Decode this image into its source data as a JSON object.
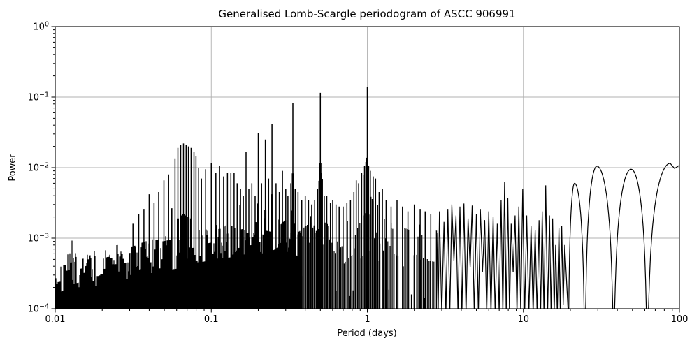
{
  "figure": {
    "title": "Generalised Lomb-Scargle periodogram of ASCC 906991",
    "xlabel": "Period (days)",
    "ylabel": "Power"
  },
  "chart_data": {
    "type": "line",
    "title": "Generalised Lomb-Scargle periodogram of ASCC 906991",
    "xlabel": "Period (days)",
    "ylabel": "Power",
    "xscale": "log",
    "yscale": "log",
    "xlim": [
      0.01,
      100
    ],
    "ylim": [
      0.0001,
      1
    ],
    "grid": true,
    "legend": null,
    "x_ticks": [
      0.01,
      0.1,
      1,
      10,
      100
    ],
    "x_tick_labels": [
      "0.01",
      "0.1",
      "1",
      "10",
      "100"
    ],
    "y_ticks": [
      1,
      0.1,
      0.01,
      0.001,
      0.0001
    ],
    "y_tick_labels": [
      [
        "10",
        "0"
      ],
      [
        "10",
        "−1"
      ],
      [
        "10",
        "−2"
      ],
      [
        "10",
        "−3"
      ],
      [
        "10",
        "−4"
      ]
    ],
    "colors": {
      "line": "#000000",
      "grid": "#b0b0b0",
      "bg": "#ffffff",
      "text": "#000000"
    },
    "seed": 7,
    "noise_region": {
      "min_period": 0.01,
      "max_period": 2.8
    },
    "noise_baseline": [
      [
        -2.0,
        0.00036
      ],
      [
        -1.75,
        0.00046
      ],
      [
        -1.55,
        0.00052
      ],
      [
        -1.4,
        0.00065
      ],
      [
        -1.25,
        0.00075
      ],
      [
        -1.1,
        0.00085
      ],
      [
        -1.0,
        0.00095
      ],
      [
        -0.85,
        0.00105
      ],
      [
        -0.72,
        0.0012
      ],
      [
        -0.6,
        0.00105
      ],
      [
        -0.52,
        0.0014
      ],
      [
        -0.44,
        0.0011
      ],
      [
        -0.35,
        0.0016
      ],
      [
        -0.3,
        0.0026
      ],
      [
        -0.26,
        0.0015
      ],
      [
        -0.18,
        0.0008
      ],
      [
        -0.1,
        0.0012
      ],
      [
        -0.04,
        0.003
      ],
      [
        0.0,
        0.0045
      ],
      [
        0.04,
        0.003
      ],
      [
        0.1,
        0.0015
      ],
      [
        0.18,
        0.0011
      ],
      [
        0.28,
        0.0009
      ],
      [
        0.36,
        0.00095
      ],
      [
        0.44,
        0.0009
      ]
    ],
    "main_peaks": [
      [
        0.0315,
        0.0016
      ],
      [
        0.0343,
        0.0022
      ],
      [
        0.037,
        0.0026
      ],
      [
        0.04,
        0.0042
      ],
      [
        0.043,
        0.0032
      ],
      [
        0.046,
        0.0045
      ],
      [
        0.0497,
        0.0066
      ],
      [
        0.0533,
        0.008
      ],
      [
        0.0586,
        0.0135
      ],
      [
        0.0611,
        0.019
      ],
      [
        0.0637,
        0.021
      ],
      [
        0.0664,
        0.022
      ],
      [
        0.069,
        0.021
      ],
      [
        0.0714,
        0.02
      ],
      [
        0.0743,
        0.019
      ],
      [
        0.0775,
        0.0165
      ],
      [
        0.0798,
        0.0145
      ],
      [
        0.083,
        0.01
      ],
      [
        0.0865,
        0.007
      ],
      [
        0.092,
        0.0095
      ],
      [
        0.1,
        0.0115
      ],
      [
        0.107,
        0.0085
      ],
      [
        0.113,
        0.0105
      ],
      [
        0.12,
        0.0075
      ],
      [
        0.127,
        0.0085
      ],
      [
        0.1335,
        0.0085
      ],
      [
        0.14,
        0.0085
      ],
      [
        0.1465,
        0.006
      ],
      [
        0.154,
        0.005
      ],
      [
        0.1605,
        0.004
      ],
      [
        0.167,
        0.0165
      ],
      [
        0.174,
        0.005
      ],
      [
        0.182,
        0.006
      ],
      [
        0.191,
        0.004
      ],
      [
        0.2,
        0.031
      ],
      [
        0.21,
        0.006
      ],
      [
        0.222,
        0.025
      ],
      [
        0.233,
        0.007
      ],
      [
        0.245,
        0.042
      ],
      [
        0.26,
        0.006
      ],
      [
        0.273,
        0.0045
      ],
      [
        0.286,
        0.009
      ],
      [
        0.3,
        0.005
      ],
      [
        0.31,
        0.004
      ],
      [
        0.3235,
        0.006
      ],
      [
        0.3333,
        0.083
      ],
      [
        0.345,
        0.005
      ],
      [
        0.36,
        0.0045
      ],
      [
        0.38,
        0.0035
      ],
      [
        0.4,
        0.004
      ],
      [
        0.42,
        0.0035
      ],
      [
        0.44,
        0.003
      ],
      [
        0.46,
        0.0035
      ],
      [
        0.48,
        0.005
      ],
      [
        0.49,
        0.0065
      ],
      [
        0.5,
        0.115
      ],
      [
        0.506,
        0.0085
      ],
      [
        0.515,
        0.0068
      ],
      [
        0.53,
        0.004
      ],
      [
        0.55,
        0.004
      ],
      [
        0.58,
        0.0032
      ],
      [
        0.6,
        0.0035
      ],
      [
        0.63,
        0.003
      ],
      [
        0.66,
        0.0028
      ],
      [
        0.7,
        0.0028
      ],
      [
        0.74,
        0.0032
      ],
      [
        0.78,
        0.0035
      ],
      [
        0.82,
        0.0045
      ],
      [
        0.85,
        0.0066
      ],
      [
        0.88,
        0.006
      ],
      [
        0.92,
        0.0085
      ],
      [
        0.96,
        0.0105
      ],
      [
        0.98,
        0.012
      ],
      [
        1.0,
        0.138
      ],
      [
        1.02,
        0.0105
      ],
      [
        1.045,
        0.009
      ],
      [
        1.09,
        0.0075
      ],
      [
        1.13,
        0.007
      ],
      [
        1.19,
        0.0045
      ],
      [
        1.25,
        0.005
      ],
      [
        1.32,
        0.0035
      ],
      [
        1.42,
        0.0028
      ],
      [
        1.55,
        0.0035
      ],
      [
        1.68,
        0.0028
      ],
      [
        1.82,
        0.0024
      ],
      [
        2.0,
        0.003
      ],
      [
        2.18,
        0.0026
      ],
      [
        2.35,
        0.0024
      ],
      [
        2.55,
        0.0022
      ]
    ],
    "oscillation_peaks": [
      [
        2.9,
        0.0024
      ],
      [
        3.1,
        0.0017
      ],
      [
        3.28,
        0.0026
      ],
      [
        3.48,
        0.003
      ],
      [
        3.7,
        0.0021
      ],
      [
        3.92,
        0.0028
      ],
      [
        4.16,
        0.0031
      ],
      [
        4.42,
        0.0019
      ],
      [
        4.7,
        0.0029
      ],
      [
        5.0,
        0.0022
      ],
      [
        5.3,
        0.0026
      ],
      [
        5.65,
        0.0018
      ],
      [
        6.0,
        0.0024
      ],
      [
        6.4,
        0.002
      ],
      [
        6.8,
        0.0016
      ],
      [
        7.2,
        0.0035
      ],
      [
        7.58,
        0.0063
      ],
      [
        7.95,
        0.0037
      ],
      [
        8.35,
        0.0016
      ],
      [
        8.85,
        0.0021
      ],
      [
        9.35,
        0.0028
      ],
      [
        9.9,
        0.005
      ],
      [
        10.5,
        0.0021
      ],
      [
        11.2,
        0.0015
      ],
      [
        11.9,
        0.0013
      ],
      [
        12.6,
        0.0018
      ],
      [
        13.2,
        0.0024
      ],
      [
        13.9,
        0.0056
      ],
      [
        14.7,
        0.0021
      ],
      [
        15.4,
        0.0019
      ],
      [
        16.1,
        0.0008
      ],
      [
        16.9,
        0.0014
      ],
      [
        17.6,
        0.0015
      ],
      [
        18.4,
        0.0008
      ]
    ],
    "lobes": [
      {
        "n0": 19.4,
        "p": 21.3,
        "v": 0.006,
        "n1": 24.8
      },
      {
        "n0": 24.8,
        "p": 29.6,
        "v": 0.0105,
        "n1": 37.9
      },
      {
        "n0": 37.9,
        "p": 49.0,
        "v": 0.0095,
        "n1": 62.2
      },
      {
        "n0": 62.2,
        "p": 87.3,
        "v": 0.0115,
        "n1": 118
      }
    ],
    "tail": [
      [
        87.3,
        0.0115
      ],
      [
        93,
        0.0097
      ],
      [
        100,
        0.0108
      ]
    ]
  }
}
